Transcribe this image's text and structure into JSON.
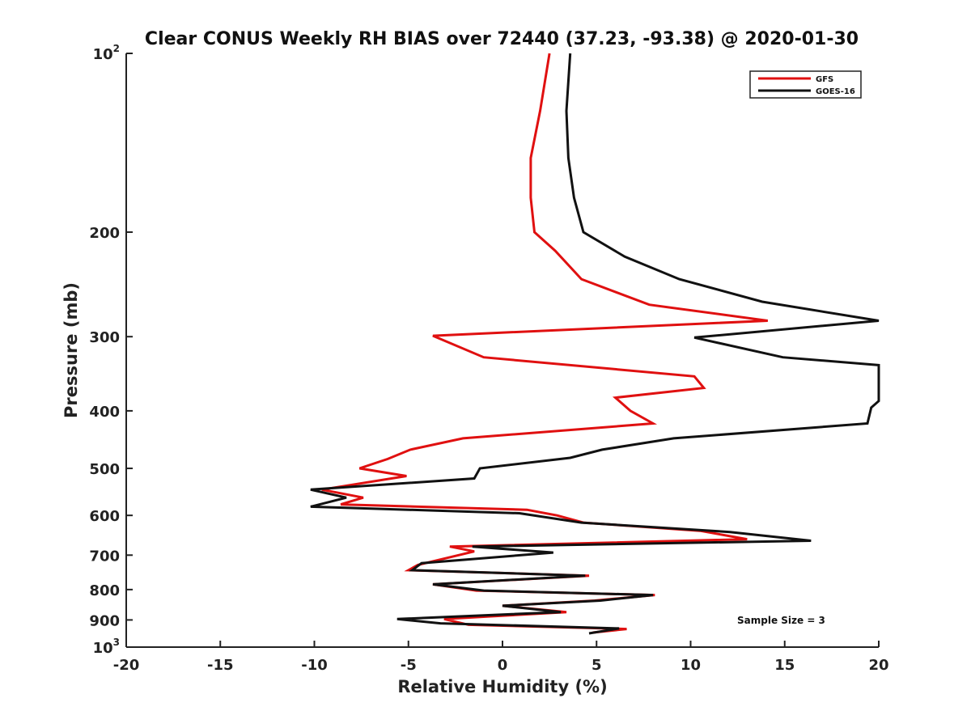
{
  "chart_data": {
    "type": "line",
    "title": "Clear CONUS Weekly RH BIAS over 72440 (37.23, -93.38) @ 2020-01-30",
    "xlabel": "Relative Humidity (%)",
    "ylabel": "Pressure (mb)",
    "xlim": [
      -20,
      20
    ],
    "ylim": [
      100,
      1000
    ],
    "y_scale": "log",
    "y_reversed": true,
    "grid": false,
    "legend_position": "top-right",
    "x_ticks": [
      -20,
      -15,
      -10,
      -5,
      0,
      5,
      10,
      15,
      20
    ],
    "x_tick_labels": [
      "-20",
      "-15",
      "-10",
      "-5",
      "0",
      "5",
      "10",
      "15",
      "20"
    ],
    "y_ticks": [
      100,
      200,
      300,
      400,
      500,
      600,
      700,
      800,
      900,
      1000
    ],
    "y_tick_labels": [
      {
        "base": "10",
        "sup": "2"
      },
      {
        "base": "200"
      },
      {
        "base": "300"
      },
      {
        "base": "400"
      },
      {
        "base": "500"
      },
      {
        "base": "600"
      },
      {
        "base": "700"
      },
      {
        "base": "800"
      },
      {
        "base": "900"
      },
      {
        "base": "10",
        "sup": "3"
      }
    ],
    "series": [
      {
        "name": "GFS",
        "color": "#e01010",
        "points": [
          [
            2.5,
            100
          ],
          [
            2.0,
            125
          ],
          [
            1.5,
            150
          ],
          [
            1.5,
            175
          ],
          [
            1.7,
            200
          ],
          [
            2.8,
            215
          ],
          [
            4.2,
            240
          ],
          [
            7.8,
            265
          ],
          [
            14.1,
            282
          ],
          [
            -3.7,
            299
          ],
          [
            -1.0,
            325
          ],
          [
            10.2,
            350
          ],
          [
            10.7,
            366
          ],
          [
            6.0,
            380
          ],
          [
            6.8,
            400
          ],
          [
            8.0,
            420
          ],
          [
            -2.1,
            445
          ],
          [
            -4.9,
            465
          ],
          [
            -6.1,
            482
          ],
          [
            -7.6,
            500
          ],
          [
            -5.1,
            515
          ],
          [
            -9.6,
            543
          ],
          [
            -7.4,
            560
          ],
          [
            -8.6,
            575
          ],
          [
            1.3,
            587
          ],
          [
            2.9,
            600
          ],
          [
            4.3,
            617
          ],
          [
            10.5,
            637
          ],
          [
            13.0,
            658
          ],
          [
            -2.8,
            677
          ],
          [
            -1.5,
            690
          ],
          [
            -4.5,
            727
          ],
          [
            -5.0,
            742
          ],
          [
            4.6,
            758
          ],
          [
            -3.7,
            784
          ],
          [
            -1.4,
            803
          ],
          [
            8.1,
            817
          ],
          [
            4.9,
            835
          ],
          [
            0.0,
            852
          ],
          [
            3.4,
            873
          ],
          [
            -3.1,
            897
          ],
          [
            -1.8,
            917
          ],
          [
            6.6,
            932
          ],
          [
            4.8,
            945
          ]
        ]
      },
      {
        "name": "GOES-16",
        "color": "#111111",
        "points": [
          [
            3.6,
            100
          ],
          [
            3.4,
            125
          ],
          [
            3.5,
            150
          ],
          [
            3.8,
            175
          ],
          [
            4.3,
            200
          ],
          [
            6.5,
            220
          ],
          [
            9.4,
            240
          ],
          [
            13.8,
            262
          ],
          [
            20.0,
            282
          ],
          [
            10.2,
            301
          ],
          [
            14.9,
            325
          ],
          [
            20.0,
            335
          ],
          [
            20.0,
            385
          ],
          [
            19.6,
            395
          ],
          [
            19.4,
            420
          ],
          [
            9.1,
            445
          ],
          [
            5.3,
            465
          ],
          [
            3.6,
            480
          ],
          [
            -1.2,
            500
          ],
          [
            -1.5,
            520
          ],
          [
            -10.2,
            543
          ],
          [
            -8.3,
            560
          ],
          [
            -10.2,
            580
          ],
          [
            0.9,
            595
          ],
          [
            4.2,
            617
          ],
          [
            12.1,
            640
          ],
          [
            16.4,
            662
          ],
          [
            -1.6,
            677
          ],
          [
            2.7,
            693
          ],
          [
            -4.3,
            722
          ],
          [
            -4.8,
            742
          ],
          [
            4.4,
            758
          ],
          [
            -3.7,
            784
          ],
          [
            -1.0,
            803
          ],
          [
            8.0,
            817
          ],
          [
            5.2,
            835
          ],
          [
            0.0,
            852
          ],
          [
            3.1,
            873
          ],
          [
            -5.6,
            897
          ],
          [
            -3.3,
            912
          ],
          [
            6.2,
            930
          ],
          [
            4.6,
            948
          ]
        ]
      }
    ],
    "annotation": "Sample Size = 3"
  }
}
